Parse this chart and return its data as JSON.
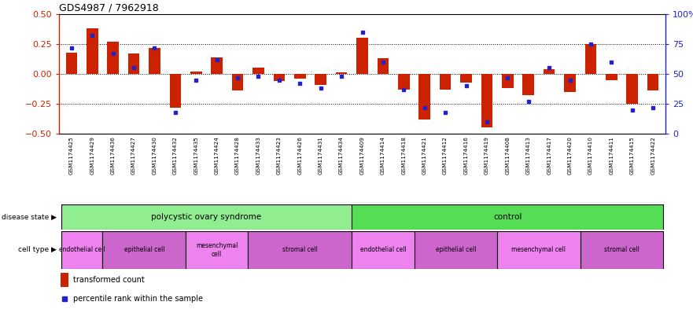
{
  "title": "GDS4987 / 7962918",
  "samples": [
    "GSM1174425",
    "GSM1174429",
    "GSM1174436",
    "GSM1174427",
    "GSM1174430",
    "GSM1174432",
    "GSM1174435",
    "GSM1174424",
    "GSM1174428",
    "GSM1174433",
    "GSM1174423",
    "GSM1174426",
    "GSM1174431",
    "GSM1174434",
    "GSM1174409",
    "GSM1174414",
    "GSM1174418",
    "GSM1174421",
    "GSM1174412",
    "GSM1174416",
    "GSM1174419",
    "GSM1174408",
    "GSM1174413",
    "GSM1174417",
    "GSM1174420",
    "GSM1174410",
    "GSM1174411",
    "GSM1174415",
    "GSM1174422"
  ],
  "red_bars": [
    0.18,
    0.38,
    0.27,
    0.17,
    0.22,
    -0.28,
    0.02,
    0.14,
    -0.14,
    0.05,
    -0.06,
    -0.04,
    -0.09,
    0.01,
    0.3,
    0.13,
    -0.13,
    -0.38,
    -0.13,
    -0.07,
    -0.45,
    -0.12,
    -0.18,
    0.04,
    -0.15,
    0.25,
    -0.05,
    -0.25,
    -0.14
  ],
  "blue_pct": [
    72,
    82,
    67,
    55,
    72,
    18,
    45,
    62,
    47,
    48,
    45,
    42,
    38,
    48,
    85,
    60,
    37,
    22,
    18,
    40,
    10,
    47,
    27,
    55,
    45,
    75,
    60,
    20,
    22
  ],
  "disease_groups": [
    {
      "label": "polycystic ovary syndrome",
      "start": 0,
      "end": 14,
      "color": "#90EE90"
    },
    {
      "label": "control",
      "start": 14,
      "end": 29,
      "color": "#55DD55"
    }
  ],
  "cell_groups": [
    {
      "label": "endothelial cell",
      "start": 0,
      "end": 2,
      "color": "#EE82EE"
    },
    {
      "label": "epithelial cell",
      "start": 2,
      "end": 6,
      "color": "#CC66CC"
    },
    {
      "label": "mesenchymal\ncell",
      "start": 6,
      "end": 9,
      "color": "#EE82EE"
    },
    {
      "label": "stromal cell",
      "start": 9,
      "end": 14,
      "color": "#CC66CC"
    },
    {
      "label": "endothelial cell",
      "start": 14,
      "end": 17,
      "color": "#EE82EE"
    },
    {
      "label": "epithelial cell",
      "start": 17,
      "end": 21,
      "color": "#CC66CC"
    },
    {
      "label": "mesenchymal cell",
      "start": 21,
      "end": 25,
      "color": "#EE82EE"
    },
    {
      "label": "stromal cell",
      "start": 25,
      "end": 29,
      "color": "#CC66CC"
    }
  ],
  "ylim": [
    -0.5,
    0.5
  ],
  "yticks_left": [
    -0.5,
    -0.25,
    0.0,
    0.25,
    0.5
  ],
  "yticks_right": [
    0,
    25,
    50,
    75,
    100
  ],
  "bar_color": "#CC2200",
  "sq_color": "#2222CC",
  "bg_color": "#FFFFFF",
  "tick_bg_color": "#C8C8C8",
  "hline_color": "#333333"
}
